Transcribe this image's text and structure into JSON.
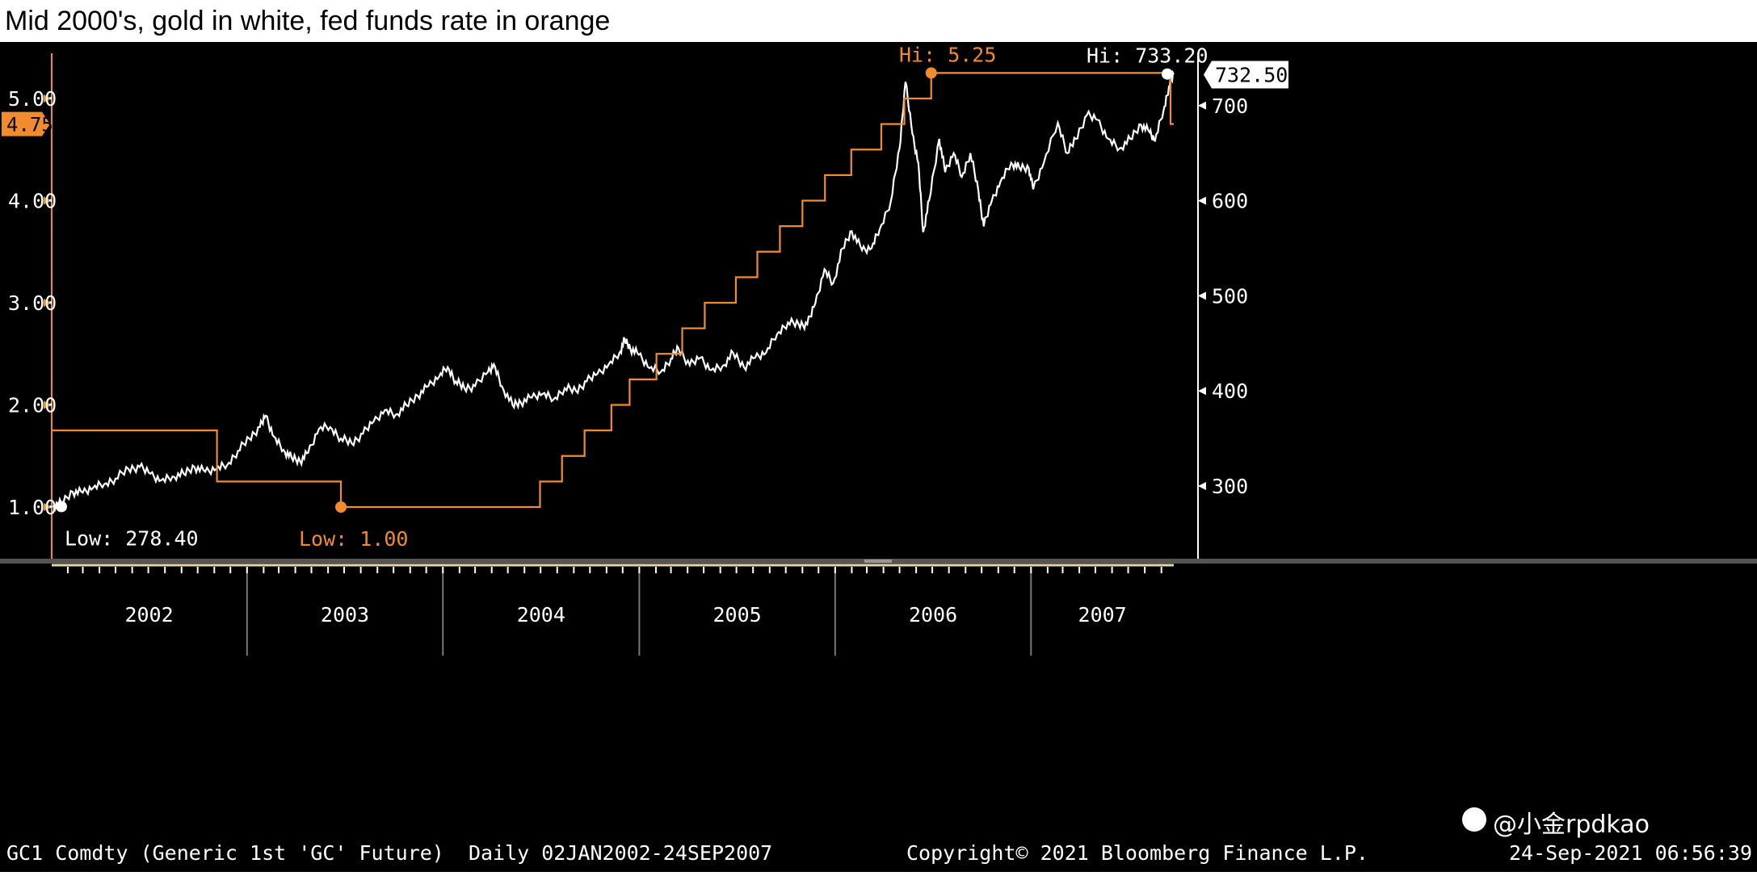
{
  "title": "Mid 2000's, gold in white, fed funds rate in orange",
  "footer": {
    "ticker": "GC1 Comdty (Generic 1st 'GC' Future)  Daily 02JAN2002-24SEP2007",
    "copyright": "Copyright© 2021 Bloomberg Finance L.P.",
    "timestamp": "24-Sep-2021 06:56:39"
  },
  "watermark": "@小金rpdkao",
  "colors": {
    "background": "#000000",
    "gold": "#ffffff",
    "fed_funds": "#f28a2e",
    "axis_text": "#ffffff",
    "x_baseline": "#e8d79a"
  },
  "chart_data": {
    "type": "line",
    "x_range": [
      "2002-01-02",
      "2007-09-24"
    ],
    "left_axis": {
      "ticks": [
        1.0,
        2.0,
        3.0,
        4.0,
        5.0
      ],
      "tick_labels": [
        "1.00",
        "2.00",
        "3.00",
        "4.00",
        "5.00"
      ],
      "range": [
        0.6,
        5.5
      ],
      "last_value_label": "4.75"
    },
    "right_axis": {
      "ticks": [
        300,
        400,
        500,
        600,
        700
      ],
      "tick_labels": [
        "300",
        "400",
        "500",
        "600",
        "700"
      ],
      "range": [
        245,
        760
      ],
      "last_value_label": "732.50"
    },
    "x_tick_labels": [
      "2002",
      "2003",
      "2004",
      "2005",
      "2006",
      "2007"
    ],
    "annotations": {
      "gold_low": "Low: 278.40",
      "gold_high": "Hi: 733.20",
      "fed_low": "Low: 1.00",
      "fed_high": "Hi: 5.25"
    },
    "series": [
      {
        "axis": "right",
        "points": [
          [
            "2002-01-02",
            279
          ],
          [
            "2002-01-20",
            282
          ],
          [
            "2002-02-10",
            294
          ],
          [
            "2002-03-01",
            293
          ],
          [
            "2002-03-20",
            298
          ],
          [
            "2002-04-10",
            302
          ],
          [
            "2002-05-01",
            308
          ],
          [
            "2002-05-25",
            318
          ],
          [
            "2002-06-15",
            320
          ],
          [
            "2002-07-05",
            313
          ],
          [
            "2002-07-25",
            306
          ],
          [
            "2002-08-15",
            310
          ],
          [
            "2002-09-05",
            313
          ],
          [
            "2002-09-25",
            320
          ],
          [
            "2002-10-15",
            315
          ],
          [
            "2002-11-05",
            318
          ],
          [
            "2002-11-25",
            322
          ],
          [
            "2002-12-15",
            337
          ],
          [
            "2003-01-05",
            350
          ],
          [
            "2003-01-25",
            362
          ],
          [
            "2003-02-05",
            374
          ],
          [
            "2003-02-20",
            352
          ],
          [
            "2003-03-10",
            338
          ],
          [
            "2003-03-25",
            330
          ],
          [
            "2003-04-10",
            326
          ],
          [
            "2003-04-25",
            335
          ],
          [
            "2003-05-15",
            360
          ],
          [
            "2003-06-05",
            362
          ],
          [
            "2003-06-25",
            350
          ],
          [
            "2003-07-15",
            345
          ],
          [
            "2003-08-05",
            355
          ],
          [
            "2003-08-25",
            368
          ],
          [
            "2003-09-15",
            380
          ],
          [
            "2003-10-05",
            375
          ],
          [
            "2003-10-25",
            385
          ],
          [
            "2003-11-15",
            395
          ],
          [
            "2003-12-05",
            405
          ],
          [
            "2003-12-25",
            415
          ],
          [
            "2004-01-10",
            425
          ],
          [
            "2004-01-25",
            410
          ],
          [
            "2004-02-10",
            403
          ],
          [
            "2004-03-01",
            405
          ],
          [
            "2004-03-25",
            420
          ],
          [
            "2004-04-05",
            428
          ],
          [
            "2004-04-20",
            405
          ],
          [
            "2004-05-10",
            385
          ],
          [
            "2004-05-25",
            388
          ],
          [
            "2004-06-15",
            393
          ],
          [
            "2004-07-05",
            397
          ],
          [
            "2004-07-25",
            391
          ],
          [
            "2004-08-15",
            403
          ],
          [
            "2004-09-05",
            400
          ],
          [
            "2004-09-25",
            410
          ],
          [
            "2004-10-15",
            418
          ],
          [
            "2004-11-05",
            428
          ],
          [
            "2004-11-25",
            440
          ],
          [
            "2004-12-05",
            454
          ],
          [
            "2004-12-15",
            445
          ],
          [
            "2004-12-31",
            438
          ],
          [
            "2005-01-20",
            424
          ],
          [
            "2005-02-10",
            420
          ],
          [
            "2005-03-01",
            434
          ],
          [
            "2005-03-15",
            445
          ],
          [
            "2005-04-05",
            427
          ],
          [
            "2005-04-25",
            435
          ],
          [
            "2005-05-15",
            422
          ],
          [
            "2005-06-05",
            426
          ],
          [
            "2005-06-25",
            440
          ],
          [
            "2005-07-15",
            425
          ],
          [
            "2005-08-05",
            435
          ],
          [
            "2005-08-25",
            440
          ],
          [
            "2005-09-15",
            460
          ],
          [
            "2005-10-05",
            472
          ],
          [
            "2005-10-25",
            470
          ],
          [
            "2005-11-10",
            470
          ],
          [
            "2005-11-25",
            492
          ],
          [
            "2005-12-12",
            528
          ],
          [
            "2005-12-28",
            513
          ],
          [
            "2006-01-15",
            550
          ],
          [
            "2006-02-01",
            568
          ],
          [
            "2006-02-20",
            548
          ],
          [
            "2006-03-10",
            550
          ],
          [
            "2006-03-25",
            570
          ],
          [
            "2006-04-15",
            600
          ],
          [
            "2006-05-01",
            655
          ],
          [
            "2006-05-12",
            725
          ],
          [
            "2006-05-25",
            670
          ],
          [
            "2006-06-05",
            640
          ],
          [
            "2006-06-14",
            567
          ],
          [
            "2006-06-25",
            600
          ],
          [
            "2006-07-14",
            665
          ],
          [
            "2006-07-25",
            630
          ],
          [
            "2006-08-10",
            650
          ],
          [
            "2006-08-25",
            625
          ],
          [
            "2006-09-10",
            650
          ],
          [
            "2006-09-25",
            610
          ],
          [
            "2006-10-05",
            573
          ],
          [
            "2006-10-20",
            600
          ],
          [
            "2006-11-05",
            620
          ],
          [
            "2006-11-25",
            640
          ],
          [
            "2006-12-10",
            635
          ],
          [
            "2006-12-28",
            634
          ],
          [
            "2007-01-05",
            612
          ],
          [
            "2007-01-25",
            640
          ],
          [
            "2007-02-20",
            682
          ],
          [
            "2007-03-10",
            650
          ],
          [
            "2007-03-25",
            665
          ],
          [
            "2007-04-15",
            690
          ],
          [
            "2007-05-05",
            685
          ],
          [
            "2007-05-25",
            665
          ],
          [
            "2007-06-15",
            655
          ],
          [
            "2007-07-05",
            665
          ],
          [
            "2007-07-25",
            680
          ],
          [
            "2007-08-10",
            672
          ],
          [
            "2007-08-20",
            663
          ],
          [
            "2007-09-05",
            695
          ],
          [
            "2007-09-15",
            720
          ],
          [
            "2007-09-24",
            733
          ]
        ]
      },
      {
        "axis": "left",
        "step": true,
        "points": [
          [
            "2002-01-02",
            1.75
          ],
          [
            "2002-11-06",
            1.25
          ],
          [
            "2003-06-25",
            1.0
          ],
          [
            "2004-06-30",
            1.25
          ],
          [
            "2004-08-10",
            1.5
          ],
          [
            "2004-09-21",
            1.75
          ],
          [
            "2004-11-10",
            2.0
          ],
          [
            "2004-12-14",
            2.25
          ],
          [
            "2005-02-02",
            2.5
          ],
          [
            "2005-03-22",
            2.75
          ],
          [
            "2005-05-03",
            3.0
          ],
          [
            "2005-06-30",
            3.25
          ],
          [
            "2005-08-09",
            3.5
          ],
          [
            "2005-09-20",
            3.75
          ],
          [
            "2005-11-01",
            4.0
          ],
          [
            "2005-12-13",
            4.25
          ],
          [
            "2006-01-31",
            4.5
          ],
          [
            "2006-03-28",
            4.75
          ],
          [
            "2006-05-10",
            5.0
          ],
          [
            "2006-06-29",
            5.25
          ],
          [
            "2007-09-18",
            4.75
          ],
          [
            "2007-09-24",
            4.75
          ]
        ]
      }
    ]
  }
}
